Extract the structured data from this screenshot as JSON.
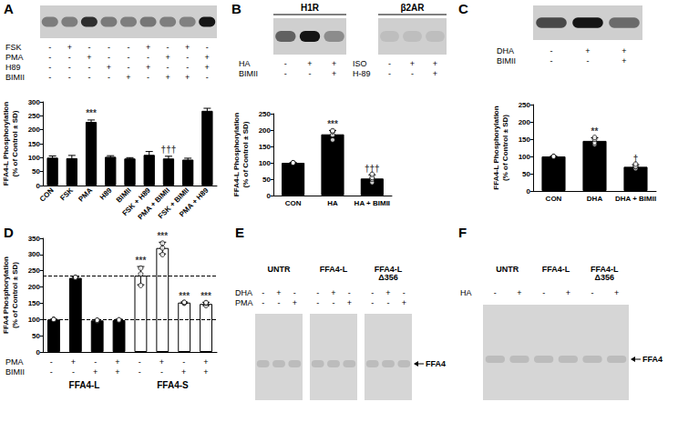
{
  "chart_data": [
    {
      "panel": "A",
      "type": "bar",
      "categories": [
        "CON",
        "FSK",
        "PMA",
        "H89",
        "BIMII",
        "FSK + H89",
        "PMA + BIMII",
        "FSK + BIMII",
        "PMA + H89"
      ],
      "values": [
        100,
        98,
        228,
        103,
        97,
        110,
        97,
        93,
        268
      ],
      "errors": [
        6,
        10,
        7,
        4,
        3,
        12,
        8,
        5,
        9
      ],
      "annotations": [
        null,
        null,
        "***",
        null,
        null,
        null,
        "†††",
        null,
        null
      ],
      "color": "#000000",
      "y_label": "FFA4-L Phosphorylation\n(% of Control ± SD)",
      "ylim": [
        0,
        300
      ],
      "yticks": [
        0,
        50,
        100,
        150,
        200,
        250,
        300
      ],
      "grid": false,
      "blots": [
        {
          "treatments": [
            {
              "label": "FSK",
              "marks": [
                "-",
                "+",
                "-",
                "-",
                "-",
                "+",
                "-",
                "+",
                "-"
              ]
            },
            {
              "label": "PMA",
              "marks": [
                "-",
                "-",
                "+",
                "-",
                "-",
                "-",
                "+",
                "-",
                "+"
              ]
            },
            {
              "label": "H89",
              "marks": [
                "-",
                "-",
                "-",
                "+",
                "-",
                "+",
                "-",
                "-",
                "+"
              ]
            },
            {
              "label": "BIMII",
              "marks": [
                "-",
                "-",
                "-",
                "-",
                "+",
                "-",
                "+",
                "+",
                "-"
              ]
            }
          ]
        }
      ]
    },
    {
      "panel": "B",
      "type": "bar",
      "categories": [
        "CON",
        "HA",
        "HA + BIMII"
      ],
      "values": [
        100,
        187,
        52
      ],
      "errors": [
        0,
        12,
        11
      ],
      "points": [
        [
          100,
          100,
          100,
          100
        ],
        [
          170,
          185,
          195,
          198
        ],
        [
          40,
          50,
          55,
          65
        ]
      ],
      "annotations": [
        null,
        "***",
        "†††"
      ],
      "color": "#000000",
      "y_label": "FFA4-L Phosphorylation\n(% of Control ± SD)",
      "ylim": [
        0,
        250
      ],
      "yticks": [
        0,
        50,
        100,
        150,
        200,
        250
      ],
      "grid": false,
      "blots": [
        {
          "title": "H1R",
          "treatments": [
            {
              "label": "HA",
              "marks": [
                "-",
                "+",
                "+"
              ]
            },
            {
              "label": "BIMII",
              "marks": [
                "-",
                "-",
                "+"
              ]
            }
          ]
        },
        {
          "title": "β2AR",
          "treatments": [
            {
              "label": "ISO",
              "marks": [
                "-",
                "+",
                "+"
              ]
            },
            {
              "label": "H-89",
              "marks": [
                "-",
                "-",
                "+"
              ]
            }
          ]
        }
      ]
    },
    {
      "panel": "C",
      "type": "bar",
      "categories": [
        "CON",
        "DHA",
        "DHA + BIMII"
      ],
      "values": [
        100,
        145,
        70
      ],
      "errors": [
        0,
        9,
        6
      ],
      "points": [
        [
          100,
          100,
          100,
          100
        ],
        [
          135,
          140,
          150,
          155
        ],
        [
          65,
          70,
          72,
          78
        ]
      ],
      "annotations": [
        null,
        "**",
        "†"
      ],
      "color": "#000000",
      "y_label": "FFA4-L Phosphorylation\n(% of Control ± SD)",
      "ylim": [
        0,
        250
      ],
      "yticks": [
        0,
        50,
        100,
        150,
        200,
        250
      ],
      "grid": false,
      "blots": [
        {
          "treatments": [
            {
              "label": "DHA",
              "marks": [
                "-",
                "+",
                "+"
              ]
            },
            {
              "label": "BIMII",
              "marks": [
                "-",
                "-",
                "+"
              ]
            }
          ]
        }
      ]
    },
    {
      "panel": "D",
      "type": "bar",
      "categories": [
        null,
        null,
        null,
        null,
        null,
        null,
        null,
        null
      ],
      "values": [
        100,
        228,
        97,
        98,
        235,
        320,
        152,
        148
      ],
      "errors": [
        1,
        3,
        3,
        3,
        28,
        18,
        2,
        5
      ],
      "points": [
        [
          100,
          100,
          100
        ],
        [
          228,
          229,
          230
        ],
        [
          95,
          97,
          98
        ],
        [
          97,
          98,
          99
        ],
        [
          205,
          240,
          258
        ],
        [
          300,
          320,
          335
        ],
        [
          150,
          152,
          153
        ],
        [
          143,
          150,
          152
        ]
      ],
      "annotations": [
        null,
        null,
        null,
        null,
        "***",
        "***",
        "***",
        "***"
      ],
      "colors": [
        "#000000",
        "#000000",
        "#000000",
        "#000000",
        "#ffffff",
        "#ffffff",
        "#ffffff",
        "#ffffff"
      ],
      "reference_lines": [
        100,
        235
      ],
      "y_label": "FFA4 Phosphorylation\n(% of Control ± SD)",
      "ylim": [
        0,
        350
      ],
      "yticks": [
        0,
        50,
        100,
        150,
        200,
        250,
        300,
        350
      ],
      "grid": false,
      "tick_labels": "y",
      "treatments": [
        {
          "label": "PMA",
          "marks": [
            "-",
            "+",
            "-",
            "+",
            "-",
            "+",
            "-",
            "+"
          ]
        },
        {
          "label": "BIMII",
          "marks": [
            "-",
            "-",
            "+",
            "+",
            "-",
            "-",
            "+",
            "+"
          ]
        }
      ],
      "groups": [
        "FFA4-L",
        "FFA4-S"
      ]
    }
  ],
  "blot_panels": [
    {
      "panel": "E",
      "groups": [
        "UNTR",
        "FFA4-L",
        "FFA4-L\nΔ356"
      ],
      "treatments": [
        {
          "label": "DHA",
          "marks": [
            "-",
            "+",
            "-",
            "-",
            "+",
            "-",
            "-",
            "+",
            "-"
          ]
        },
        {
          "label": "PMA",
          "marks": [
            "-",
            "-",
            "+",
            "-",
            "-",
            "+",
            "-",
            "-",
            "+"
          ]
        }
      ],
      "band_label": "FFA4"
    },
    {
      "panel": "F",
      "groups": [
        "UNTR",
        "FFA4-L",
        "FFA4-L\nΔ356"
      ],
      "treatments": [
        {
          "label": "HA",
          "marks": [
            "-",
            "+",
            "-",
            "+",
            "-",
            "+"
          ]
        }
      ],
      "band_label": "FFA4"
    }
  ]
}
